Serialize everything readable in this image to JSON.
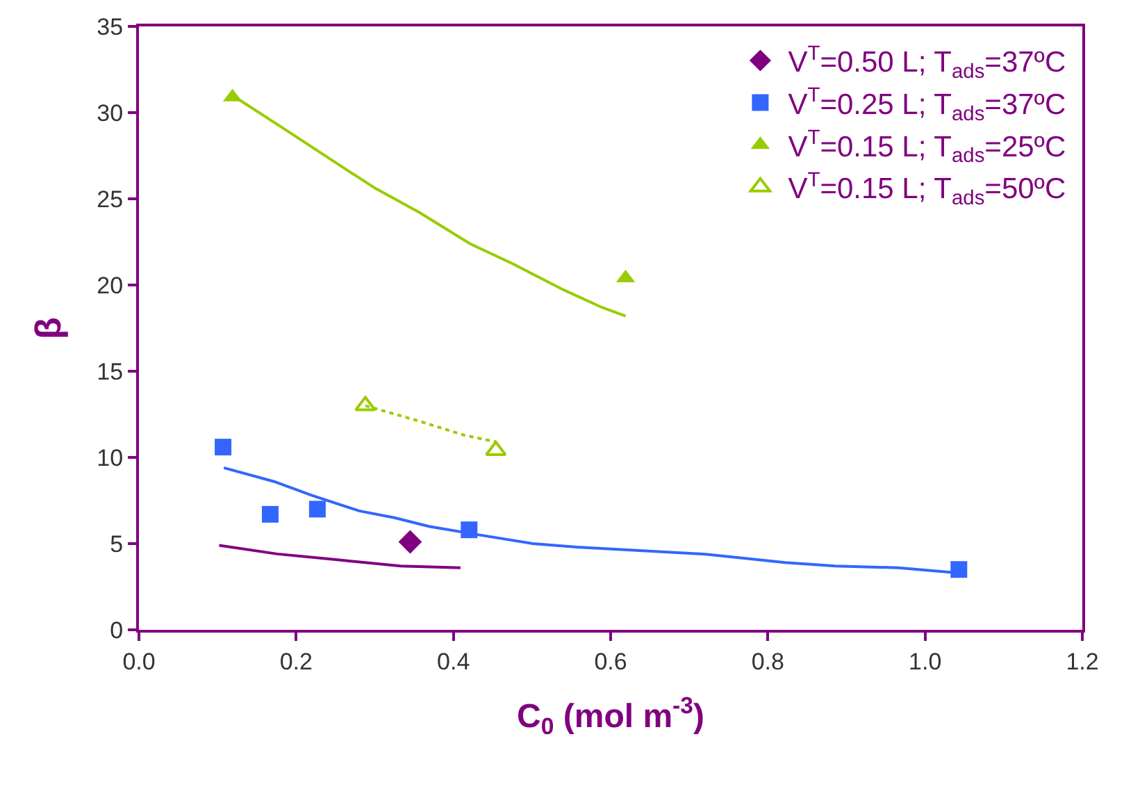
{
  "chart_data": {
    "type": "scatter",
    "xlabel": "C$_{0}$ (mol m$^{-3}$)",
    "ylabel": "β",
    "xlim": [
      0,
      1.2
    ],
    "xticks": [
      {
        "value": 0,
        "label": "0.0"
      },
      {
        "value": 0.2,
        "label": "0.2"
      },
      {
        "value": 0.4,
        "label": "0.4"
      },
      {
        "value": 0.6,
        "label": "0.6"
      },
      {
        "value": 0.8,
        "label": "0.8"
      },
      {
        "value": 1,
        "label": "1.0"
      },
      {
        "value": 1.2,
        "label": "1.2"
      }
    ],
    "ylim": [
      0,
      35
    ],
    "yticks": [
      0,
      5,
      10,
      15,
      20,
      25,
      30,
      35
    ],
    "grid": false,
    "legend": "top right",
    "series": [
      {
        "name": "V$^{T}$=0.50 L; T$_{ads}$=37ºC",
        "marker": "diamond",
        "color": "#800080",
        "x": [
          0.345
        ],
        "values": [
          5.1
        ]
      },
      {
        "name": "V$^{T}$=0.25 L; T$_{ads}$=37ºC",
        "marker": "square",
        "color": "#3366ff",
        "x": [
          0.107,
          0.167,
          0.227,
          0.42,
          1.043
        ],
        "values": [
          10.6,
          6.7,
          7.0,
          5.8,
          3.5
        ]
      },
      {
        "name": "V$^{T}$=0.15 L; T$_{ads}$=25ºC",
        "marker": "triangle",
        "color": "#99cc00",
        "x": [
          0.119,
          0.619
        ],
        "values": [
          30.9,
          20.4
        ]
      },
      {
        "name": "V$^{T}$=0.15 L; T$_{ads}$=50ºC",
        "marker": "triangle-open",
        "color": "#99cc00",
        "x": [
          0.288,
          0.454
        ],
        "values": [
          13.0,
          10.4
        ]
      },
      {
        "type": "line",
        "marker": "none",
        "line_style": "solid",
        "color": "#800080",
        "x": [
          0.102,
          0.176,
          0.244,
          0.333,
          0.409
        ],
        "values": [
          4.9,
          4.4,
          4.1,
          3.7,
          3.6
        ]
      },
      {
        "type": "line",
        "marker": "none",
        "line_style": "solid",
        "color": "#3366ff",
        "x": [
          0.108,
          0.172,
          0.22,
          0.28,
          0.325,
          0.369,
          0.42,
          0.501,
          0.557,
          0.637,
          0.717,
          0.822,
          0.886,
          0.966,
          1.043
        ],
        "values": [
          9.4,
          8.6,
          7.8,
          6.9,
          6.5,
          6.0,
          5.6,
          5.0,
          4.8,
          4.6,
          4.4,
          3.9,
          3.7,
          3.6,
          3.3
        ]
      },
      {
        "type": "line",
        "marker": "none",
        "line_style": "solid",
        "color": "#99cc00",
        "x": [
          0.119,
          0.18,
          0.257,
          0.301,
          0.357,
          0.421,
          0.477,
          0.541,
          0.589,
          0.619
        ],
        "values": [
          31.0,
          29.2,
          26.9,
          25.6,
          24.2,
          22.4,
          21.2,
          19.7,
          18.7,
          18.2
        ]
      },
      {
        "type": "line",
        "marker": "none",
        "line_style": "dotted",
        "color": "#99cc00",
        "x": [
          0.288,
          0.357,
          0.413,
          0.454
        ],
        "values": [
          13.0,
          12.1,
          11.3,
          10.9
        ]
      }
    ]
  }
}
